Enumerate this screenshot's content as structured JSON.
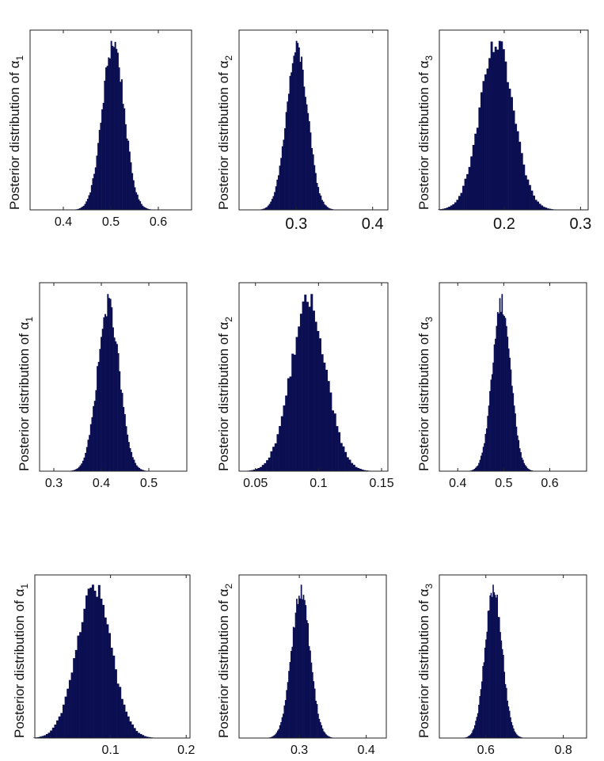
{
  "chart_data": [
    {
      "type": "bar",
      "ylabel": "Posterior distribution of α",
      "ylabel_sub": "1",
      "xlim": [
        0.33,
        0.67
      ],
      "xticks": [
        0.4,
        0.5,
        0.6
      ],
      "xtick_labels": [
        "0.4",
        "0.5",
        "0.6"
      ],
      "mean": 0.505,
      "sd": 0.023,
      "grid": false,
      "bar_color": "#0b0f52"
    },
    {
      "type": "bar",
      "ylabel": "Posterior distribution of α",
      "ylabel_sub": "2",
      "xlim": [
        0.225,
        0.42
      ],
      "xticks": [
        0.3,
        0.4
      ],
      "xtick_labels": [
        "0.3",
        "0.4"
      ],
      "mean": 0.301,
      "sd": 0.014,
      "grid": false,
      "bar_color": "#0b0f52"
    },
    {
      "type": "bar",
      "ylabel": "Posterior distribution of α",
      "ylabel_sub": "3",
      "xlim": [
        0.115,
        0.31
      ],
      "xticks": [
        0.2,
        0.3
      ],
      "xtick_labels": [
        "0.2",
        "0.3"
      ],
      "mean": 0.19,
      "sd": 0.022,
      "grid": false,
      "bar_color": "#0b0f52"
    },
    {
      "type": "bar",
      "ylabel": "Posterior distribution of α",
      "ylabel_sub": "1",
      "xlim": [
        0.27,
        0.58
      ],
      "xticks": [
        0.3,
        0.4,
        0.5
      ],
      "xtick_labels": [
        "0.3",
        "0.4",
        "0.5"
      ],
      "mean": 0.415,
      "sd": 0.023,
      "grid": false,
      "bar_color": "#0b0f52"
    },
    {
      "type": "bar",
      "ylabel": "Posterior distribution of α",
      "ylabel_sub": "2",
      "xlim": [
        0.037,
        0.155
      ],
      "xticks": [
        0.05,
        0.1,
        0.15
      ],
      "xtick_labels": [
        "0.05",
        "0.1",
        "0.15"
      ],
      "mean": 0.092,
      "sd": 0.014,
      "grid": false,
      "bar_color": "#0b0f52"
    },
    {
      "type": "bar",
      "ylabel": "Posterior distribution of α",
      "ylabel_sub": "3",
      "xlim": [
        0.36,
        0.68
      ],
      "xticks": [
        0.4,
        0.5,
        0.6
      ],
      "xtick_labels": [
        "0.4",
        "0.5",
        "0.6"
      ],
      "mean": 0.495,
      "sd": 0.02,
      "grid": false,
      "bar_color": "#0b0f52"
    },
    {
      "type": "bar",
      "ylabel": "Posterior distribution of α",
      "ylabel_sub": "1",
      "xlim": [
        0.0,
        0.205
      ],
      "xticks": [
        0.1,
        0.2
      ],
      "xtick_labels": [
        "0.1",
        "0.2"
      ],
      "mean": 0.078,
      "sd": 0.023,
      "grid": false,
      "bar_color": "#0b0f52"
    },
    {
      "type": "bar",
      "ylabel": "Posterior distribution of α",
      "ylabel_sub": "2",
      "xlim": [
        0.21,
        0.43
      ],
      "xticks": [
        0.3,
        0.4
      ],
      "xtick_labels": [
        "0.3",
        "0.4"
      ],
      "mean": 0.302,
      "sd": 0.014,
      "grid": false,
      "bar_color": "#0b0f52"
    },
    {
      "type": "bar",
      "ylabel": "Posterior distribution of α",
      "ylabel_sub": "3",
      "xlim": [
        0.48,
        0.86
      ],
      "xticks": [
        0.6,
        0.8
      ],
      "xtick_labels": [
        "0.6",
        "0.8"
      ],
      "mean": 0.62,
      "sd": 0.022,
      "grid": false,
      "bar_color": "#0b0f52"
    }
  ]
}
